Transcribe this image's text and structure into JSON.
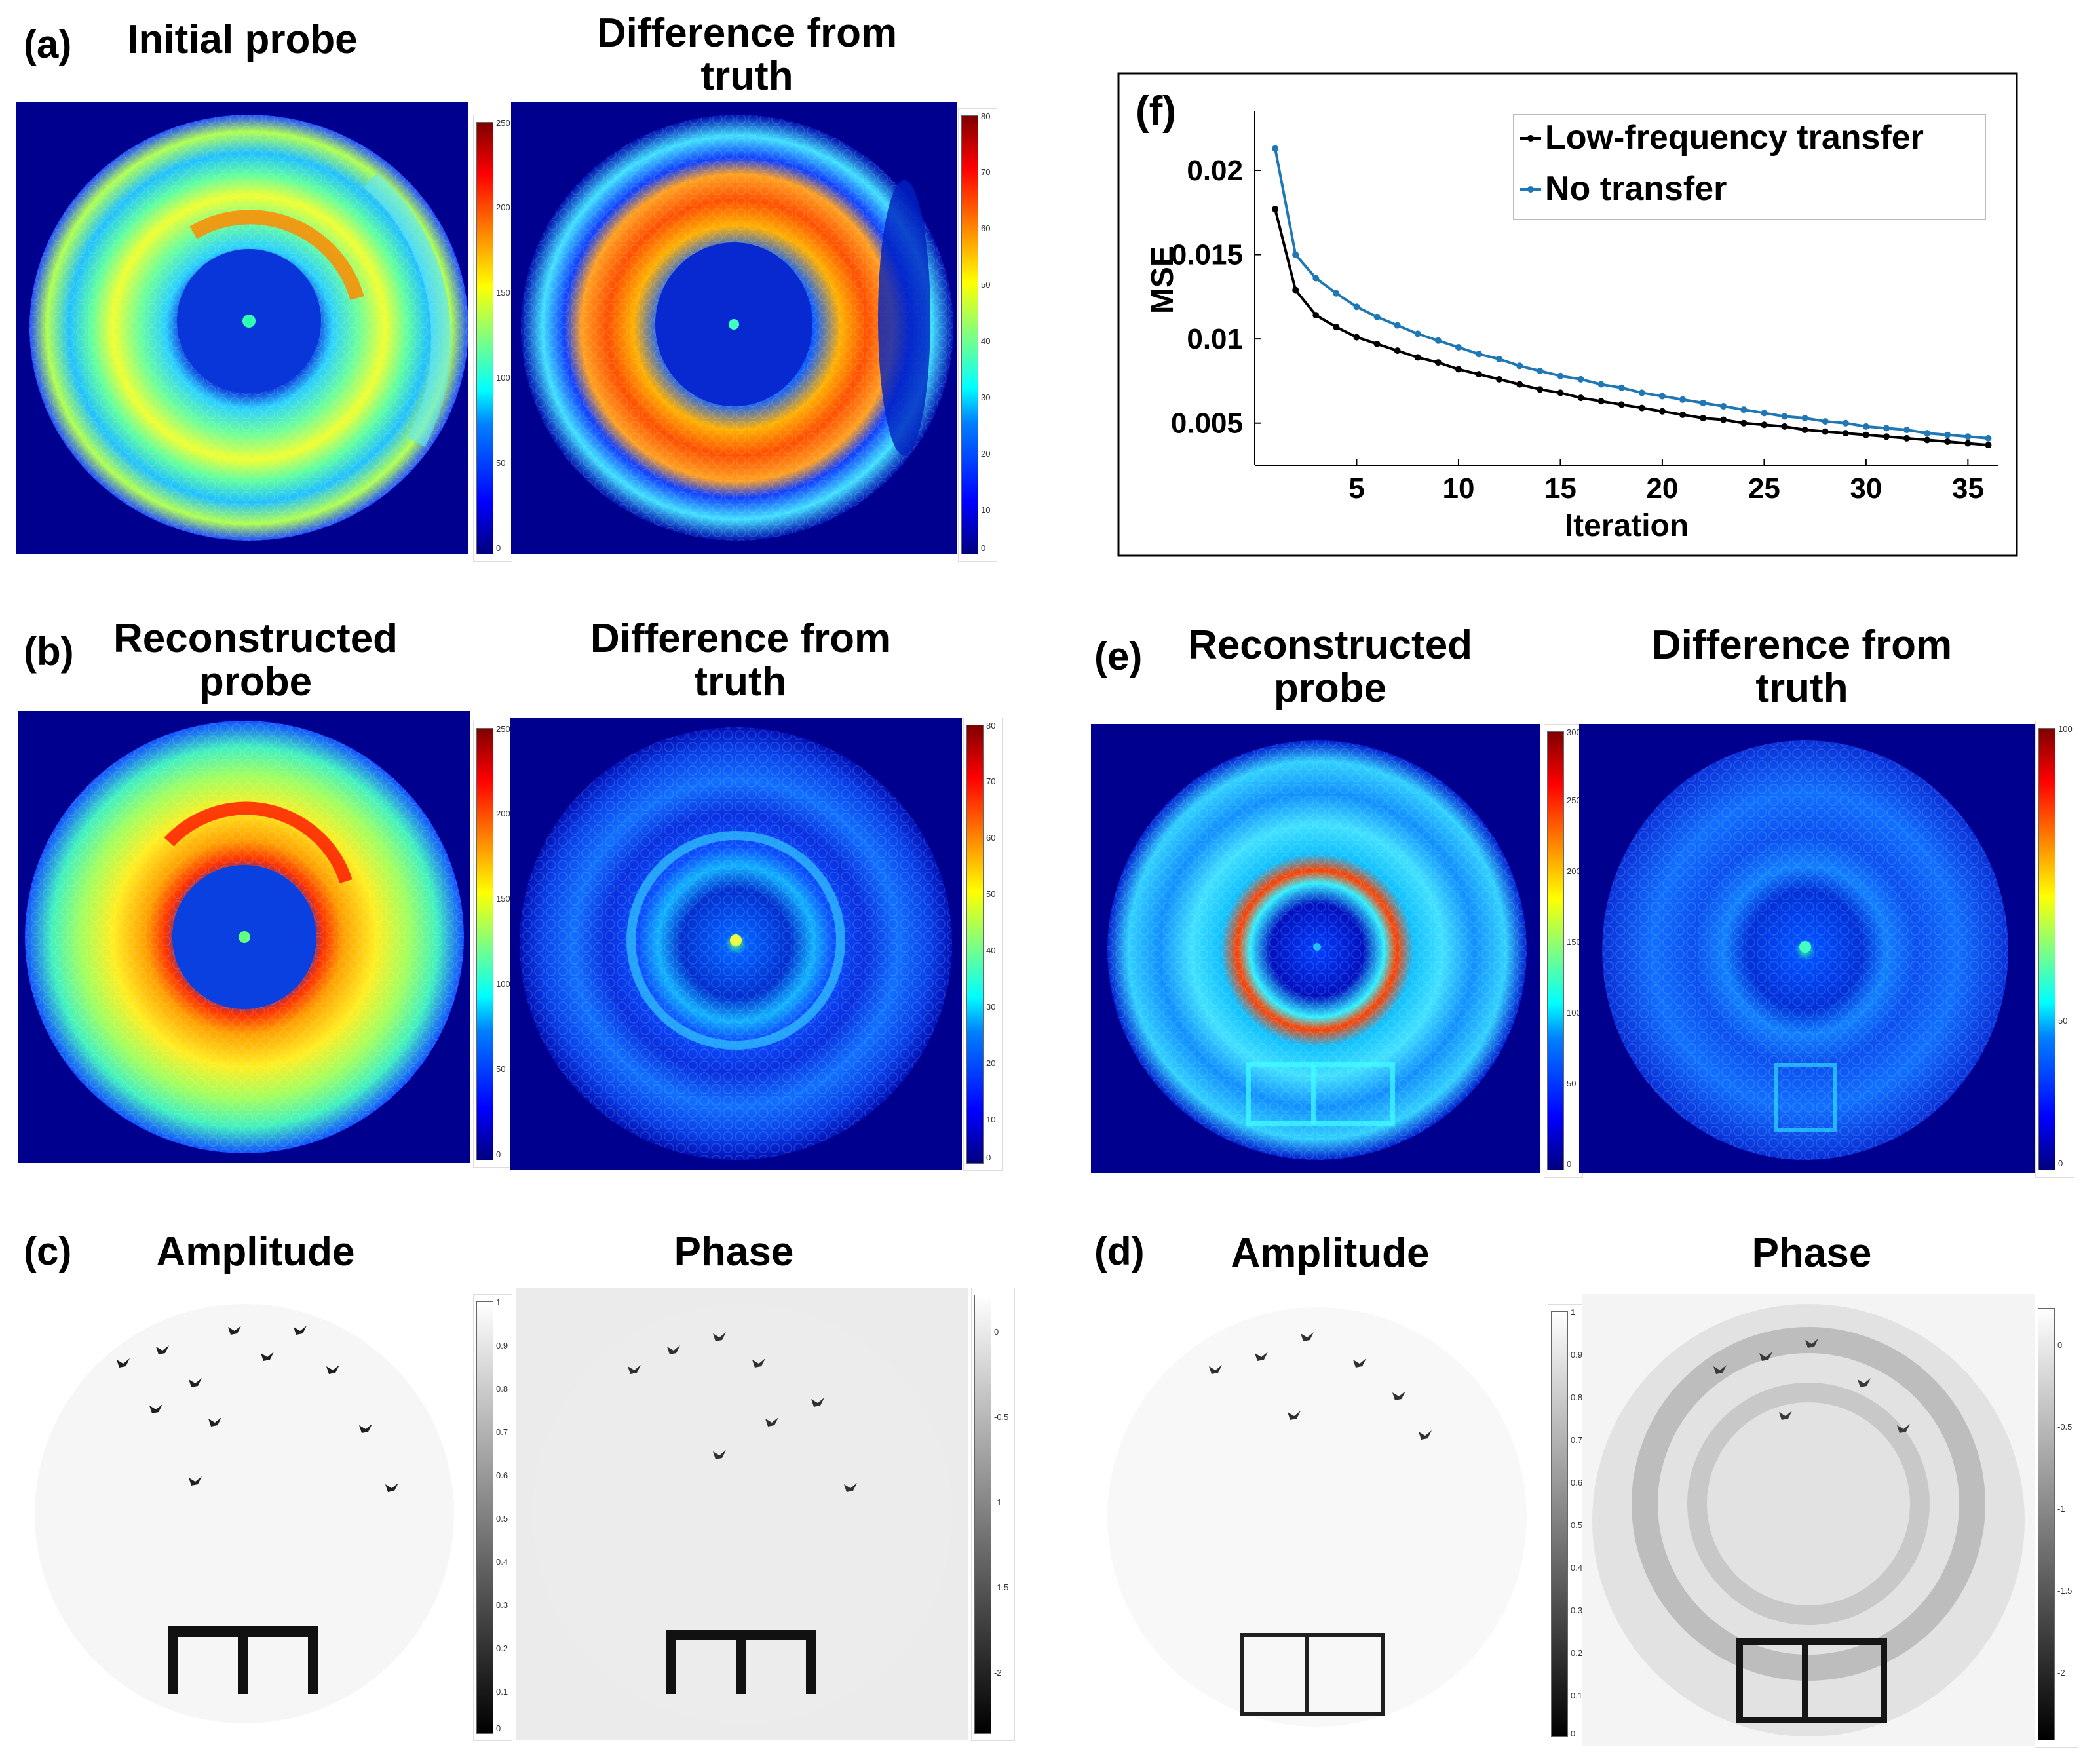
{
  "panels": {
    "a": {
      "label": "(a)",
      "left_title": "Initial probe",
      "right_title": "Difference from\ntruth",
      "left_ticks": [
        "250",
        "200",
        "150",
        "100",
        "50",
        "0"
      ],
      "right_ticks": [
        "80",
        "70",
        "60",
        "50",
        "40",
        "30",
        "20",
        "10",
        "0"
      ]
    },
    "b": {
      "label": "(b)",
      "left_title": "Reconstructed\nprobe",
      "right_title": "Difference from\ntruth",
      "left_ticks": [
        "250",
        "200",
        "150",
        "100",
        "50",
        "0"
      ],
      "right_ticks": [
        "80",
        "70",
        "60",
        "50",
        "40",
        "30",
        "20",
        "10",
        "0"
      ]
    },
    "c": {
      "label": "(c)",
      "left_title": "Amplitude",
      "right_title": "Phase",
      "left_ticks": [
        "1",
        "0.9",
        "0.8",
        "0.7",
        "0.6",
        "0.5",
        "0.4",
        "0.3",
        "0.2",
        "0.1",
        "0"
      ],
      "right_ticks": [
        "0",
        "-0.5",
        "-1",
        "-1.5",
        "-2"
      ]
    },
    "d": {
      "label": "(d)",
      "left_title": "Amplitude",
      "right_title": "Phase",
      "left_ticks": [
        "1",
        "0.9",
        "0.8",
        "0.7",
        "0.6",
        "0.5",
        "0.4",
        "0.3",
        "0.2",
        "0.1",
        "0"
      ],
      "right_ticks": [
        "0",
        "-0.5",
        "-1",
        "-1.5",
        "-2"
      ]
    },
    "e": {
      "label": "(e)",
      "left_title": "Reconstructed\nprobe",
      "right_title": "Difference from\ntruth",
      "left_ticks": [
        "300",
        "250",
        "200",
        "150",
        "100",
        "50",
        "0"
      ],
      "right_ticks": [
        "100",
        "50",
        "0"
      ]
    }
  },
  "chart_data": {
    "type": "line",
    "panel_label": "(f)",
    "xlabel": "Iteration",
    "ylabel": "MSE",
    "xlim": [
      0,
      36.5
    ],
    "ylim": [
      0.0025,
      0.0235
    ],
    "xticks": [
      5,
      10,
      15,
      20,
      25,
      30,
      35
    ],
    "yticks": [
      0.005,
      0.01,
      0.015,
      0.02
    ],
    "ytick_labels": [
      "0.005",
      "0.01",
      "0.015",
      "0.02"
    ],
    "legend_position": "top-right",
    "series": [
      {
        "name": "Low-frequency transfer",
        "color": "#000000",
        "x": [
          1,
          2,
          3,
          4,
          5,
          6,
          7,
          8,
          9,
          10,
          11,
          12,
          13,
          14,
          15,
          16,
          17,
          18,
          19,
          20,
          21,
          22,
          23,
          24,
          25,
          26,
          27,
          28,
          29,
          30,
          31,
          32,
          33,
          34,
          35,
          36
        ],
        "y": [
          0.0177,
          0.0129,
          0.0114,
          0.0107,
          0.0101,
          0.0097,
          0.0093,
          0.0089,
          0.0086,
          0.0082,
          0.0079,
          0.0076,
          0.0073,
          0.007,
          0.0068,
          0.0065,
          0.0063,
          0.0061,
          0.0059,
          0.0057,
          0.0055,
          0.0053,
          0.0052,
          0.005,
          0.0049,
          0.0048,
          0.0046,
          0.0045,
          0.0044,
          0.0043,
          0.0042,
          0.0041,
          0.004,
          0.0039,
          0.0038,
          0.0037
        ]
      },
      {
        "name": "No transfer",
        "color": "#1f77b4",
        "x": [
          1,
          2,
          3,
          4,
          5,
          6,
          7,
          8,
          9,
          10,
          11,
          12,
          13,
          14,
          15,
          16,
          17,
          18,
          19,
          20,
          21,
          22,
          23,
          24,
          25,
          26,
          27,
          28,
          29,
          30,
          31,
          32,
          33,
          34,
          35,
          36
        ],
        "y": [
          0.0213,
          0.015,
          0.0136,
          0.0127,
          0.0119,
          0.0113,
          0.0108,
          0.0103,
          0.0099,
          0.0095,
          0.0091,
          0.0088,
          0.0084,
          0.0081,
          0.0078,
          0.0076,
          0.0073,
          0.0071,
          0.0068,
          0.0066,
          0.0064,
          0.0062,
          0.006,
          0.0058,
          0.0056,
          0.0054,
          0.0053,
          0.0051,
          0.005,
          0.0048,
          0.0047,
          0.0046,
          0.0044,
          0.0043,
          0.0042,
          0.0041
        ]
      }
    ]
  }
}
